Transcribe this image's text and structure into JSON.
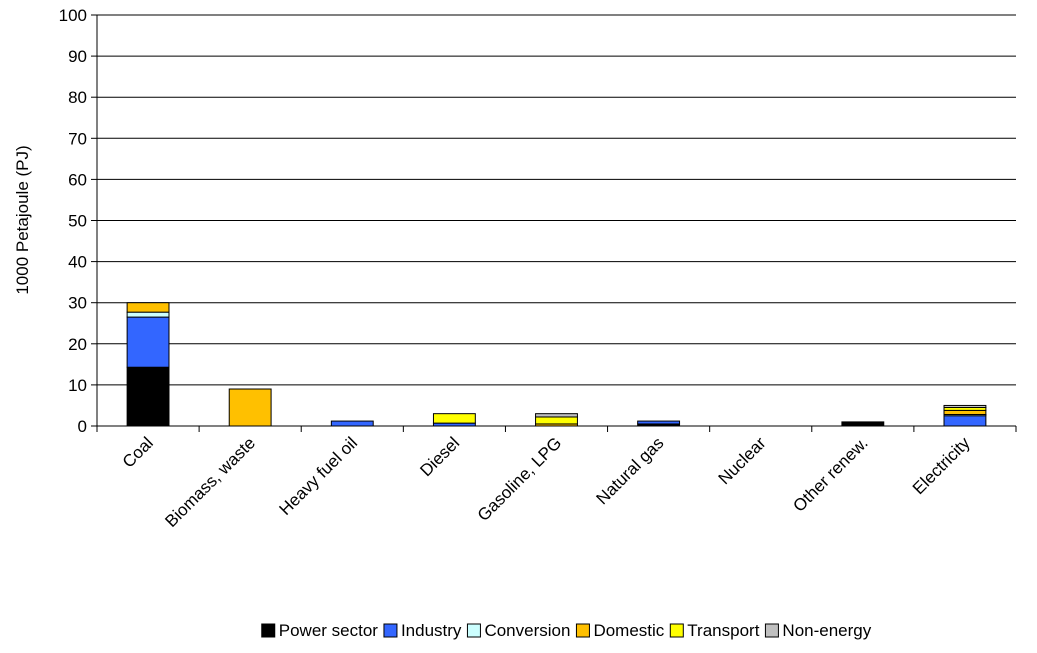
{
  "chart_data": {
    "type": "bar",
    "stacked": true,
    "ylabel": "1000 Petajoule (PJ)",
    "xlabel": "",
    "ylim": [
      0,
      100
    ],
    "yticks": [
      "0",
      "10",
      "20",
      "30",
      "40",
      "50",
      "60",
      "70",
      "80",
      "90",
      "100"
    ],
    "grid": true,
    "legend_position": "bottom",
    "categories": [
      "Coal",
      "Biomass,  waste",
      "Heavy fuel oil",
      "Diesel",
      "Gasoline, LPG",
      "Natural gas",
      "Nuclear",
      "Other renew.",
      "Electricity"
    ],
    "series": [
      {
        "name": "Power sector",
        "color": "#000000",
        "values": [
          14.3,
          0,
          0,
          0,
          0,
          0.5,
          0,
          1.0,
          0
        ]
      },
      {
        "name": "Industry",
        "color": "#3366FF",
        "values": [
          12.2,
          0,
          1.2,
          0.7,
          0,
          0.7,
          0,
          0,
          2.5
        ]
      },
      {
        "name": "Conversion",
        "color": "#CCFFFF",
        "values": [
          1.2,
          0,
          0,
          0,
          0,
          0,
          0,
          0,
          0.3
        ]
      },
      {
        "name": "Domestic",
        "color": "#FFC000",
        "values": [
          2.3,
          9.0,
          0,
          0,
          0.5,
          0,
          0,
          0,
          1.0
        ]
      },
      {
        "name": "Transport",
        "color": "#FFFF00",
        "values": [
          0,
          0,
          0,
          2.3,
          1.7,
          0,
          0,
          0,
          0.7
        ]
      },
      {
        "name": "Non-energy",
        "color": "#C0C0C0",
        "values": [
          0,
          0,
          0,
          0,
          0.8,
          0,
          0,
          0,
          0.5
        ]
      }
    ]
  }
}
